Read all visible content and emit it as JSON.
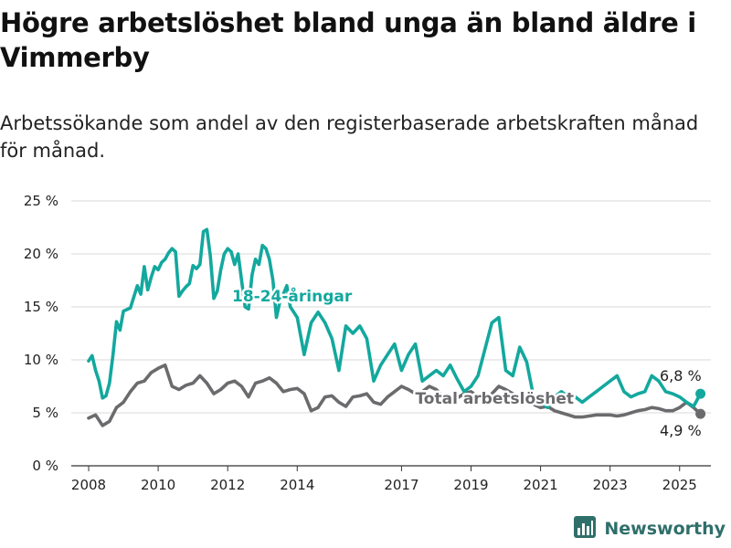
{
  "title": "Högre arbetslöshet bland unga än bland äldre i Vimmerby",
  "subtitle": "Arbetssökande som andel av den registerbaserade arbetskraften månad för månad.",
  "brand": {
    "name": "Newsworthy",
    "logo_icon": "bar-chart-logo-icon"
  },
  "chart_data": {
    "type": "line",
    "ylim": [
      0,
      25
    ],
    "yticks": [
      0,
      5,
      10,
      15,
      20,
      25
    ],
    "ytick_labels": [
      "0 %",
      "5 %",
      "10 %",
      "15 %",
      "20 %",
      "25 %"
    ],
    "xlim": [
      2007.5,
      2025.9
    ],
    "xticks": [
      2008,
      2010,
      2012,
      2014,
      2017,
      2019,
      2021,
      2023,
      2025
    ],
    "xtick_labels": [
      "2008",
      "2010",
      "2012",
      "2014",
      "2017",
      "2019",
      "2021",
      "2023",
      "2025"
    ],
    "grid": true,
    "series": [
      {
        "name": "18-24-åringar",
        "color": "#13a89e",
        "end_label": "6,8 %",
        "x": [
          2008.0,
          2008.1,
          2008.2,
          2008.3,
          2008.4,
          2008.5,
          2008.6,
          2008.7,
          2008.8,
          2008.9,
          2009.0,
          2009.2,
          2009.4,
          2009.5,
          2009.6,
          2009.7,
          2009.8,
          2009.9,
          2010.0,
          2010.1,
          2010.2,
          2010.3,
          2010.4,
          2010.5,
          2010.6,
          2010.7,
          2010.8,
          2010.9,
          2011.0,
          2011.1,
          2011.2,
          2011.3,
          2011.4,
          2011.5,
          2011.6,
          2011.7,
          2011.8,
          2011.9,
          2012.0,
          2012.1,
          2012.2,
          2012.3,
          2012.4,
          2012.5,
          2012.6,
          2012.7,
          2012.8,
          2012.9,
          2013.0,
          2013.1,
          2013.2,
          2013.3,
          2013.4,
          2013.5,
          2013.6,
          2013.7,
          2013.8,
          2013.9,
          2014.0,
          2014.2,
          2014.4,
          2014.5,
          2014.6,
          2014.8,
          2015.0,
          2015.2,
          2015.4,
          2015.6,
          2015.8,
          2016.0,
          2016.2,
          2016.4,
          2016.6,
          2016.8,
          2017.0,
          2017.2,
          2017.4,
          2017.6,
          2017.8,
          2018.0,
          2018.2,
          2018.4,
          2018.6,
          2018.8,
          2019.0,
          2019.2,
          2019.4,
          2019.6,
          2019.8,
          2020.0,
          2020.2,
          2020.4,
          2020.6,
          2020.8,
          2021.0,
          2021.2,
          2021.4,
          2021.6,
          2021.8,
          2022.0,
          2022.2,
          2022.4,
          2022.6,
          2022.8,
          2023.0,
          2023.2,
          2023.4,
          2023.6,
          2023.8,
          2024.0,
          2024.2,
          2024.4,
          2024.6,
          2024.8,
          2025.0,
          2025.2,
          2025.4,
          2025.6
        ],
        "values": [
          9.9,
          10.4,
          9.0,
          8.0,
          6.4,
          6.6,
          7.8,
          10.5,
          13.6,
          12.8,
          14.6,
          14.9,
          17.0,
          16.2,
          18.8,
          16.6,
          17.8,
          18.8,
          18.5,
          19.2,
          19.5,
          20.1,
          20.5,
          20.2,
          16.0,
          16.5,
          16.9,
          17.2,
          18.9,
          18.6,
          19.0,
          22.1,
          22.3,
          19.8,
          15.8,
          16.5,
          18.5,
          20.0,
          20.5,
          20.2,
          19.0,
          20.0,
          17.5,
          15.0,
          14.8,
          18.0,
          19.5,
          19.0,
          20.8,
          20.5,
          19.5,
          17.5,
          14.0,
          15.5,
          16.2,
          17.0,
          15.0,
          14.5,
          14.0,
          10.5,
          13.5,
          14.0,
          14.5,
          13.5,
          12.0,
          9.0,
          13.2,
          12.5,
          13.2,
          12.0,
          8.0,
          9.5,
          10.5,
          11.5,
          9.0,
          10.5,
          11.5,
          8.0,
          8.5,
          9.0,
          8.5,
          9.5,
          8.2,
          7.0,
          7.5,
          8.5,
          11.0,
          13.5,
          14.0,
          9.0,
          8.5,
          11.2,
          9.8,
          6.5,
          6.0,
          5.5,
          6.5,
          7.0,
          6.5,
          6.5,
          6.0,
          6.5,
          7.0,
          7.5,
          8.0,
          8.5,
          7.0,
          6.5,
          6.8,
          7.0,
          8.5,
          8.0,
          7.0,
          6.8,
          6.5,
          6.0,
          5.6,
          6.8
        ]
      },
      {
        "name": "Total arbetslöshet",
        "color": "#6b6b6e",
        "end_label": "4,9 %",
        "x": [
          2008.0,
          2008.2,
          2008.4,
          2008.6,
          2008.8,
          2009.0,
          2009.2,
          2009.4,
          2009.6,
          2009.8,
          2010.0,
          2010.2,
          2010.4,
          2010.6,
          2010.8,
          2011.0,
          2011.2,
          2011.4,
          2011.6,
          2011.8,
          2012.0,
          2012.2,
          2012.4,
          2012.6,
          2012.8,
          2013.0,
          2013.2,
          2013.4,
          2013.6,
          2013.8,
          2014.0,
          2014.2,
          2014.4,
          2014.6,
          2014.8,
          2015.0,
          2015.2,
          2015.4,
          2015.6,
          2015.8,
          2016.0,
          2016.2,
          2016.4,
          2016.6,
          2016.8,
          2017.0,
          2017.2,
          2017.4,
          2017.6,
          2017.8,
          2018.0,
          2018.2,
          2018.4,
          2018.6,
          2018.8,
          2019.0,
          2019.2,
          2019.4,
          2019.6,
          2019.8,
          2020.0,
          2020.2,
          2020.4,
          2020.6,
          2020.8,
          2021.0,
          2021.2,
          2021.4,
          2021.6,
          2021.8,
          2022.0,
          2022.2,
          2022.4,
          2022.6,
          2022.8,
          2023.0,
          2023.2,
          2023.4,
          2023.6,
          2023.8,
          2024.0,
          2024.2,
          2024.4,
          2024.6,
          2024.8,
          2025.0,
          2025.2,
          2025.4,
          2025.6
        ],
        "values": [
          4.5,
          4.8,
          3.8,
          4.2,
          5.5,
          6.0,
          7.0,
          7.8,
          8.0,
          8.8,
          9.2,
          9.5,
          7.5,
          7.2,
          7.6,
          7.8,
          8.5,
          7.8,
          6.8,
          7.2,
          7.8,
          8.0,
          7.5,
          6.5,
          7.8,
          8.0,
          8.3,
          7.8,
          7.0,
          7.2,
          7.3,
          6.8,
          5.2,
          5.5,
          6.5,
          6.6,
          6.0,
          5.6,
          6.5,
          6.6,
          6.8,
          6.0,
          5.8,
          6.5,
          7.0,
          7.5,
          7.2,
          6.8,
          7.0,
          7.5,
          7.2,
          6.5,
          6.0,
          6.4,
          6.8,
          7.0,
          6.5,
          6.2,
          6.8,
          7.5,
          7.2,
          6.8,
          6.5,
          6.0,
          5.8,
          5.5,
          5.6,
          5.2,
          5.0,
          4.8,
          4.6,
          4.6,
          4.7,
          4.8,
          4.8,
          4.8,
          4.7,
          4.8,
          5.0,
          5.2,
          5.3,
          5.5,
          5.4,
          5.2,
          5.2,
          5.5,
          6.0,
          5.5,
          4.9
        ]
      }
    ]
  }
}
